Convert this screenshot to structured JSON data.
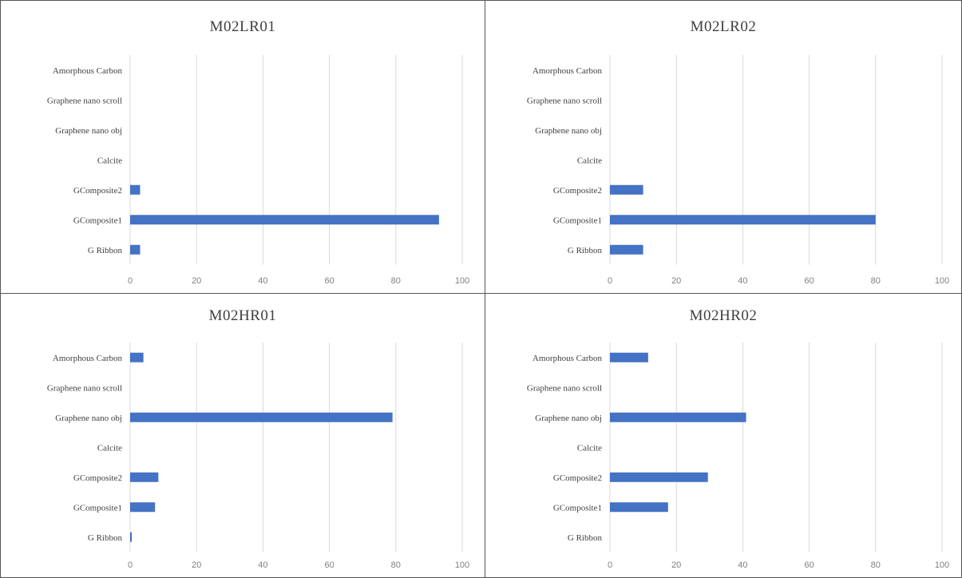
{
  "chart_data": [
    {
      "type": "bar",
      "orientation": "horizontal",
      "title": "M02LR01",
      "categories": [
        "G Ribbon",
        "GComposite1",
        "GComposite2",
        "Calcite",
        "Graphene nano obj",
        "Graphene nano scroll",
        "Amorphous Carbon"
      ],
      "values": [
        3,
        93,
        3,
        0,
        0,
        0,
        0
      ],
      "xlim": [
        0,
        100
      ],
      "xticks": [
        0,
        20,
        40,
        60,
        80,
        100
      ],
      "grid": true,
      "bar_color": "#4472C4"
    },
    {
      "type": "bar",
      "orientation": "horizontal",
      "title": "M02LR02",
      "categories": [
        "G Ribbon",
        "GComposite1",
        "GComposite2",
        "Calcite",
        "Graphene nano obj",
        "Graphene nano scroll",
        "Amorphous Carbon"
      ],
      "values": [
        10,
        80,
        10,
        0,
        0,
        0,
        0
      ],
      "xlim": [
        0,
        100
      ],
      "xticks": [
        0,
        20,
        40,
        60,
        80,
        100
      ],
      "grid": true,
      "bar_color": "#4472C4"
    },
    {
      "type": "bar",
      "orientation": "horizontal",
      "title": "M02HR01",
      "categories": [
        "G Ribbon",
        "GComposite1",
        "GComposite2",
        "Calcite",
        "Graphene nano obj",
        "Graphene nano scroll",
        "Amorphous Carbon"
      ],
      "values": [
        0.5,
        7.5,
        8.5,
        0,
        79,
        0,
        4
      ],
      "xlim": [
        0,
        100
      ],
      "xticks": [
        0,
        20,
        40,
        60,
        80,
        100
      ],
      "grid": true,
      "bar_color": "#4472C4"
    },
    {
      "type": "bar",
      "orientation": "horizontal",
      "title": "M02HR02",
      "categories": [
        "G Ribbon",
        "GComposite1",
        "GComposite2",
        "Calcite",
        "Graphene nano obj",
        "Graphene nano scroll",
        "Amorphous Carbon"
      ],
      "values": [
        0,
        17.5,
        29.5,
        0,
        41,
        0,
        11.5
      ],
      "xlim": [
        0,
        100
      ],
      "xticks": [
        0,
        20,
        40,
        60,
        80,
        100
      ],
      "grid": true,
      "bar_color": "#4472C4"
    }
  ]
}
